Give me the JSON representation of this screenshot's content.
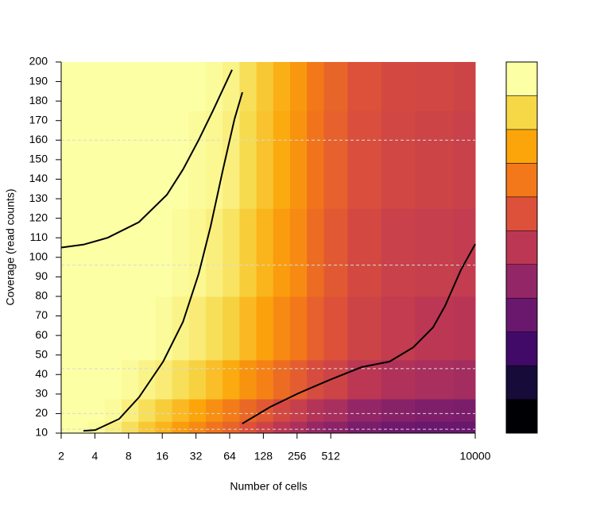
{
  "chart_data": {
    "type": "heatmap",
    "xlabel": "Number of cells",
    "ylabel": "Coverage (read counts)",
    "xscale": "log2",
    "xlim": [
      2,
      10000
    ],
    "ylim": [
      10,
      200
    ],
    "xticks": [
      2,
      4,
      8,
      16,
      32,
      64,
      128,
      256,
      512,
      10000
    ],
    "yticks": [
      10,
      20,
      30,
      40,
      50,
      60,
      70,
      80,
      90,
      100,
      110,
      120,
      130,
      140,
      150,
      160,
      170,
      180,
      190,
      200
    ],
    "x": [
      2,
      3,
      4,
      6,
      8,
      12,
      16,
      24,
      32,
      48,
      64,
      96,
      128,
      192,
      256,
      384,
      512,
      1024,
      2048,
      4096,
      10000
    ],
    "y": [
      12,
      20,
      35,
      60,
      100,
      150,
      200
    ],
    "z": [
      [
        1,
        1,
        0.99,
        0.96,
        0.92,
        0.87,
        0.83,
        0.78,
        0.74,
        0.69,
        0.65,
        0.6,
        0.55,
        0.5,
        0.46,
        0.41,
        0.38,
        0.34,
        0.31,
        0.3,
        0.3
      ],
      [
        1,
        1,
        1,
        0.99,
        0.96,
        0.92,
        0.88,
        0.84,
        0.8,
        0.75,
        0.71,
        0.66,
        0.62,
        0.57,
        0.53,
        0.48,
        0.45,
        0.4,
        0.37,
        0.35,
        0.34
      ],
      [
        1,
        1,
        1,
        1,
        0.99,
        0.97,
        0.95,
        0.92,
        0.89,
        0.85,
        0.81,
        0.76,
        0.72,
        0.67,
        0.63,
        0.58,
        0.55,
        0.5,
        0.47,
        0.45,
        0.44
      ],
      [
        1,
        1,
        1,
        1,
        1,
        1,
        0.99,
        0.97,
        0.95,
        0.92,
        0.89,
        0.84,
        0.79,
        0.74,
        0.7,
        0.64,
        0.6,
        0.55,
        0.52,
        0.5,
        0.49
      ],
      [
        1,
        1,
        1,
        1,
        1,
        1,
        1,
        0.99,
        0.98,
        0.96,
        0.93,
        0.88,
        0.83,
        0.78,
        0.74,
        0.67,
        0.62,
        0.57,
        0.54,
        0.53,
        0.52
      ],
      [
        1,
        1,
        1,
        1,
        1,
        1,
        1,
        1,
        0.99,
        0.98,
        0.96,
        0.91,
        0.86,
        0.81,
        0.76,
        0.69,
        0.64,
        0.59,
        0.56,
        0.55,
        0.54
      ],
      [
        1,
        1,
        1,
        1,
        1,
        1,
        1,
        1,
        1,
        0.99,
        0.97,
        0.92,
        0.87,
        0.82,
        0.77,
        0.7,
        0.65,
        0.6,
        0.57,
        0.56,
        0.55
      ]
    ],
    "zlim": [
      0,
      1
    ],
    "colors": [
      "#000004",
      "#160b39",
      "#420a68",
      "#6a176e",
      "#932667",
      "#bc3754",
      "#dd513a",
      "#f37819",
      "#fca50a",
      "#f6d746",
      "#fcffa4"
    ],
    "contours": [
      {
        "color": "#000000",
        "x": [
          2,
          3.16,
          5.2,
          9.9,
          17.6,
          24.5,
          33.8,
          45.3,
          67.2
        ],
        "y": [
          105,
          106.5,
          110,
          118,
          132,
          145,
          160,
          175,
          196
        ]
      },
      {
        "color": "#000000",
        "x": [
          3.16,
          4.03,
          6.6,
          9.9,
          16.3,
          24.5,
          33.8,
          43.2,
          55.4,
          70.7,
          83.1
        ],
        "y": [
          11.2,
          11.6,
          17.3,
          28.3,
          46.6,
          67,
          91.4,
          115.8,
          144.3,
          170.8,
          184.5
        ]
      },
      {
        "color": "#000000",
        "x": [
          83,
          147,
          261,
          502,
          968,
          1713,
          2795,
          4200,
          5370,
          7440,
          10000
        ],
        "y": [
          14.9,
          23.4,
          30.3,
          37.3,
          43.8,
          46.6,
          53.9,
          64.1,
          75.1,
          93.5,
          106.8
        ]
      }
    ],
    "hlines": [
      12,
      20,
      43,
      96,
      160
    ]
  }
}
